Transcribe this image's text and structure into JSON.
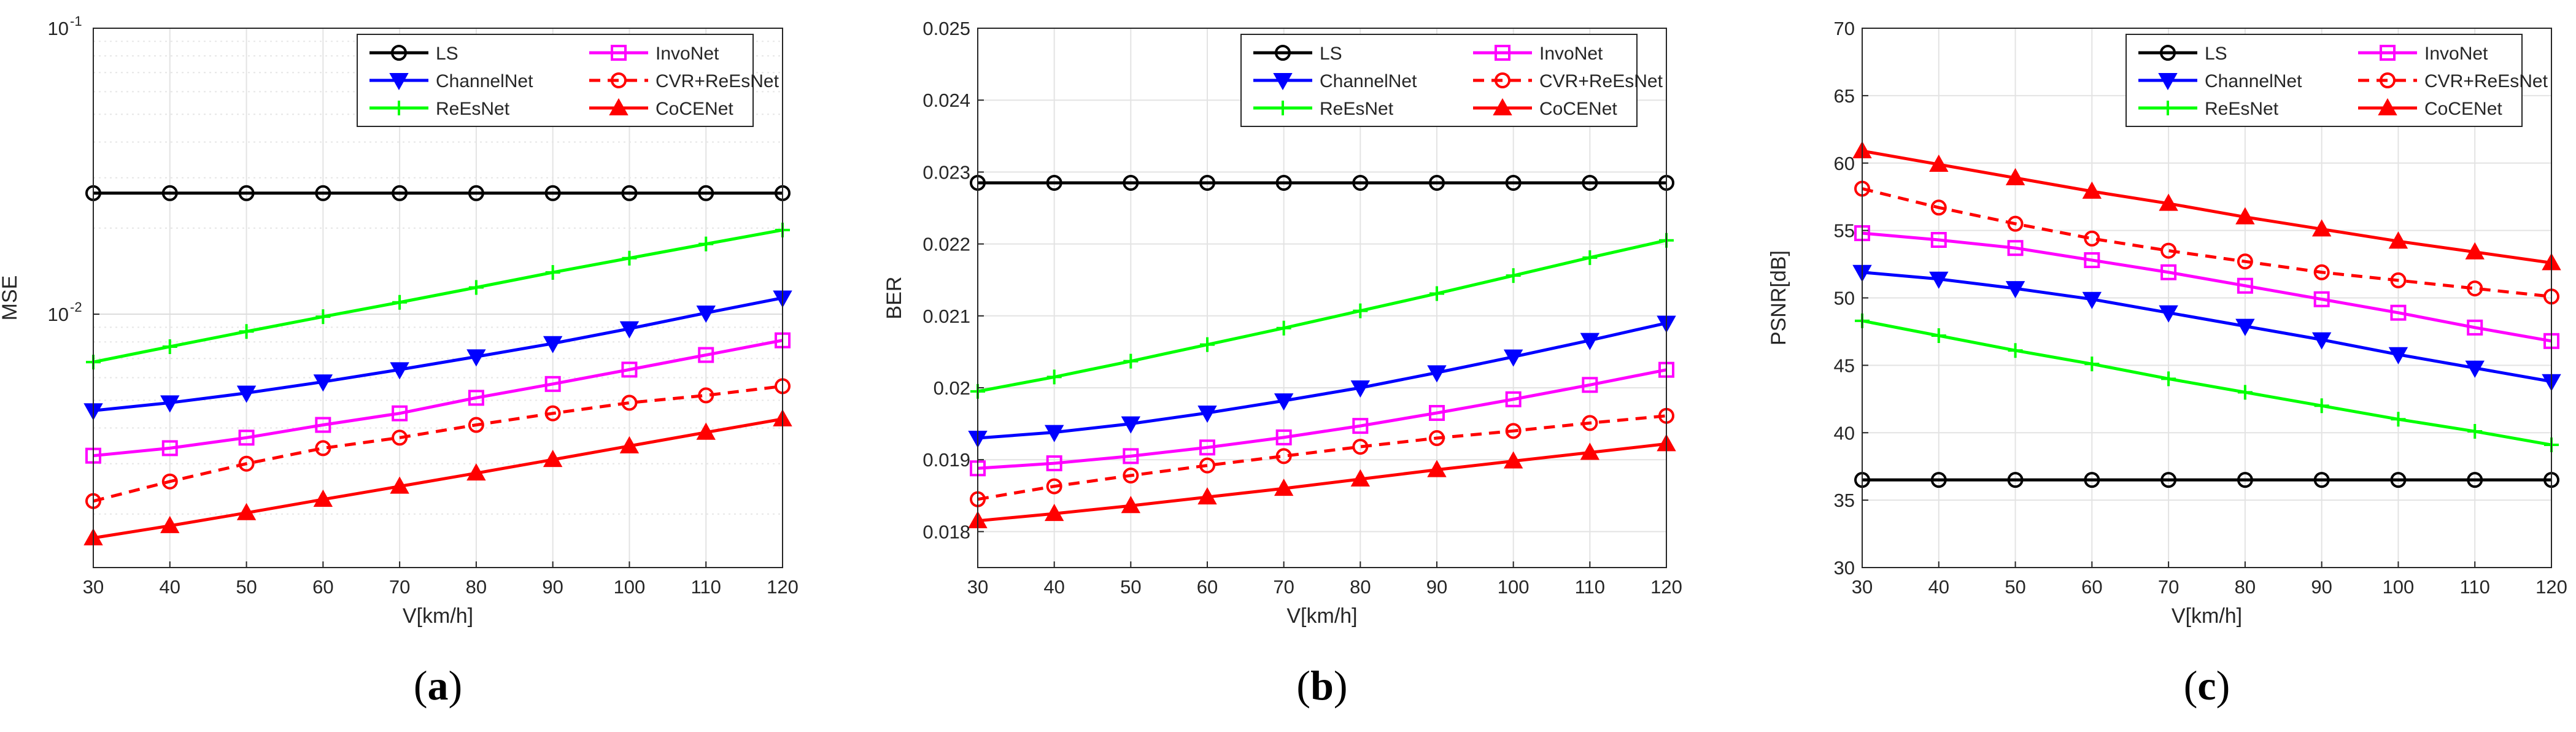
{
  "chart_data": [
    {
      "type": "line",
      "panel_label": "(a)",
      "panel_letter": "a",
      "xlabel": "V[km/h]",
      "ylabel": "MSE",
      "yscale": "log",
      "x": [
        30,
        40,
        50,
        60,
        70,
        80,
        90,
        100,
        110,
        120
      ],
      "xlim": [
        30,
        120
      ],
      "ylim": [
        0.0013,
        0.1
      ],
      "xticks": [
        "30",
        "40",
        "50",
        "60",
        "70",
        "80",
        "90",
        "100",
        "110",
        "120"
      ],
      "yticks": [
        {
          "value": 0.1,
          "label": "10",
          "exp": "-1"
        },
        {
          "value": 0.01,
          "label": "10",
          "exp": "-2"
        }
      ],
      "grid": true,
      "legend": "top-right",
      "series": [
        {
          "name": "LS",
          "color": "#000000",
          "marker": "circle",
          "dash": false,
          "values": [
            0.0265,
            0.0265,
            0.0265,
            0.0265,
            0.0265,
            0.0265,
            0.0265,
            0.0265,
            0.0265,
            0.0265
          ]
        },
        {
          "name": "InvoNet",
          "color": "#ff00ff",
          "marker": "square",
          "dash": false,
          "values": [
            0.0032,
            0.0034,
            0.0037,
            0.0041,
            0.0045,
            0.0051,
            0.0057,
            0.0064,
            0.0072,
            0.0081
          ]
        },
        {
          "name": "ChannelNet",
          "color": "#0000ff",
          "marker": "triangle-down",
          "dash": false,
          "values": [
            0.0046,
            0.0049,
            0.0053,
            0.0058,
            0.0064,
            0.0071,
            0.0079,
            0.0089,
            0.0101,
            0.0114
          ]
        },
        {
          "name": "CVR+ReEsNet",
          "color": "#ff0000",
          "marker": "circle",
          "dash": true,
          "values": [
            0.00222,
            0.0026,
            0.003,
            0.0034,
            0.0037,
            0.0041,
            0.0045,
            0.0049,
            0.0052,
            0.0056
          ]
        },
        {
          "name": "ReEsNet",
          "color": "#00ff00",
          "marker": "plus",
          "dash": false,
          "values": [
            0.0068,
            0.0077,
            0.0087,
            0.0098,
            0.011,
            0.0124,
            0.014,
            0.0157,
            0.0176,
            0.0197
          ]
        },
        {
          "name": "CoCENet",
          "color": "#ff0000",
          "marker": "triangle-up",
          "dash": false,
          "values": [
            0.00165,
            0.00182,
            0.00202,
            0.00225,
            0.0025,
            0.00278,
            0.0031,
            0.00346,
            0.00386,
            0.0043
          ]
        }
      ]
    },
    {
      "type": "line",
      "panel_label": "(b)",
      "panel_letter": "b",
      "xlabel": "V[km/h]",
      "ylabel": "BER",
      "yscale": "linear",
      "x": [
        30,
        40,
        50,
        60,
        70,
        80,
        90,
        100,
        110,
        120
      ],
      "xlim": [
        30,
        120
      ],
      "ylim": [
        0.0175,
        0.025
      ],
      "xticks": [
        "30",
        "40",
        "50",
        "60",
        "70",
        "80",
        "90",
        "100",
        "110",
        "120"
      ],
      "yticks": [
        {
          "value": 0.018,
          "label": "0.018"
        },
        {
          "value": 0.019,
          "label": "0.019"
        },
        {
          "value": 0.02,
          "label": "0.02"
        },
        {
          "value": 0.021,
          "label": "0.021"
        },
        {
          "value": 0.022,
          "label": "0.022"
        },
        {
          "value": 0.023,
          "label": "0.023"
        },
        {
          "value": 0.024,
          "label": "0.024"
        },
        {
          "value": 0.025,
          "label": "0.025"
        }
      ],
      "grid": true,
      "legend": "top-right",
      "series": [
        {
          "name": "LS",
          "color": "#000000",
          "marker": "circle",
          "dash": false,
          "values": [
            0.02285,
            0.02285,
            0.02285,
            0.02285,
            0.02285,
            0.02285,
            0.02285,
            0.02285,
            0.02285,
            0.02285
          ]
        },
        {
          "name": "InvoNet",
          "color": "#ff00ff",
          "marker": "square",
          "dash": false,
          "values": [
            0.01888,
            0.01895,
            0.01905,
            0.01917,
            0.01931,
            0.01947,
            0.01965,
            0.01984,
            0.02004,
            0.02025
          ]
        },
        {
          "name": "ChannelNet",
          "color": "#0000ff",
          "marker": "triangle-down",
          "dash": false,
          "values": [
            0.0193,
            0.01938,
            0.0195,
            0.01965,
            0.01982,
            0.02,
            0.02021,
            0.02043,
            0.02066,
            0.0209
          ]
        },
        {
          "name": "CVR+ReEsNet",
          "color": "#ff0000",
          "marker": "circle",
          "dash": true,
          "values": [
            0.01845,
            0.01863,
            0.01878,
            0.01892,
            0.01905,
            0.01918,
            0.0193,
            0.0194,
            0.01951,
            0.01961
          ]
        },
        {
          "name": "ReEsNet",
          "color": "#00ff00",
          "marker": "plus",
          "dash": false,
          "values": [
            0.01995,
            0.02015,
            0.02037,
            0.0206,
            0.02083,
            0.02107,
            0.02131,
            0.02156,
            0.02181,
            0.02205
          ]
        },
        {
          "name": "CoCENet",
          "color": "#ff0000",
          "marker": "triangle-up",
          "dash": false,
          "values": [
            0.01815,
            0.01825,
            0.01836,
            0.01848,
            0.0186,
            0.01873,
            0.01886,
            0.01898,
            0.0191,
            0.01922
          ]
        }
      ]
    },
    {
      "type": "line",
      "panel_label": "(c)",
      "panel_letter": "c",
      "xlabel": "V[km/h]",
      "ylabel": "PSNR[dB]",
      "yscale": "linear",
      "x": [
        30,
        40,
        50,
        60,
        70,
        80,
        90,
        100,
        110,
        120
      ],
      "xlim": [
        30,
        120
      ],
      "ylim": [
        30,
        70
      ],
      "xticks": [
        "30",
        "40",
        "50",
        "60",
        "70",
        "80",
        "90",
        "100",
        "110",
        "120"
      ],
      "yticks": [
        {
          "value": 30,
          "label": "30"
        },
        {
          "value": 35,
          "label": "35"
        },
        {
          "value": 40,
          "label": "40"
        },
        {
          "value": 45,
          "label": "45"
        },
        {
          "value": 50,
          "label": "50"
        },
        {
          "value": 55,
          "label": "55"
        },
        {
          "value": 60,
          "label": "60"
        },
        {
          "value": 65,
          "label": "65"
        },
        {
          "value": 70,
          "label": "70"
        }
      ],
      "grid": true,
      "legend": "top-right",
      "series": [
        {
          "name": "LS",
          "color": "#000000",
          "marker": "circle",
          "dash": false,
          "values": [
            36.5,
            36.5,
            36.5,
            36.5,
            36.5,
            36.5,
            36.5,
            36.5,
            36.5,
            36.5
          ]
        },
        {
          "name": "InvoNet",
          "color": "#ff00ff",
          "marker": "square",
          "dash": false,
          "values": [
            54.8,
            54.3,
            53.7,
            52.8,
            51.9,
            50.9,
            49.9,
            48.9,
            47.8,
            46.8
          ]
        },
        {
          "name": "ChannelNet",
          "color": "#0000ff",
          "marker": "triangle-down",
          "dash": false,
          "values": [
            51.9,
            51.4,
            50.7,
            49.9,
            48.9,
            47.9,
            46.9,
            45.8,
            44.8,
            43.8
          ]
        },
        {
          "name": "CVR+ReEsNet",
          "color": "#ff0000",
          "marker": "circle",
          "dash": true,
          "values": [
            58.1,
            56.7,
            55.5,
            54.4,
            53.5,
            52.7,
            51.9,
            51.3,
            50.7,
            50.1
          ]
        },
        {
          "name": "ReEsNet",
          "color": "#00ff00",
          "marker": "plus",
          "dash": false,
          "values": [
            48.3,
            47.2,
            46.1,
            45.1,
            44.0,
            43.0,
            42.0,
            41.0,
            40.1,
            39.1
          ]
        },
        {
          "name": "CoCENet",
          "color": "#ff0000",
          "marker": "triangle-up",
          "dash": false,
          "values": [
            60.9,
            59.9,
            58.9,
            57.9,
            57.0,
            56.0,
            55.1,
            54.2,
            53.4,
            52.6
          ]
        }
      ]
    }
  ]
}
